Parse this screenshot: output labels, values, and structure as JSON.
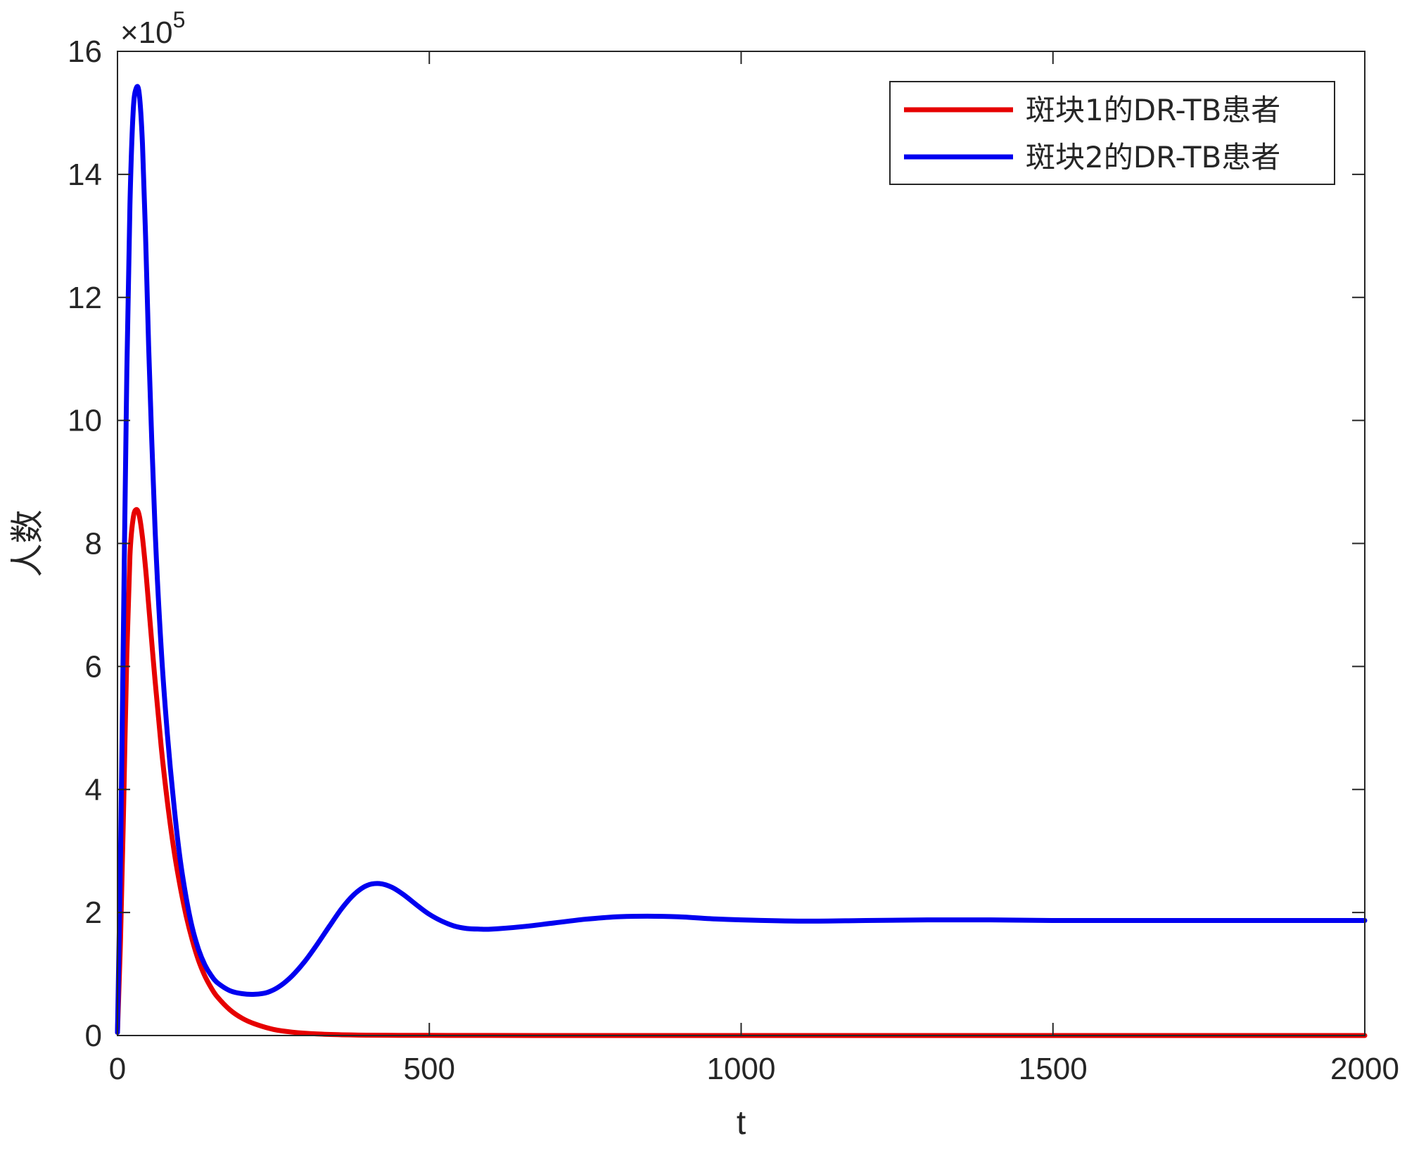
{
  "chart_data": {
    "type": "line",
    "xlabel": "t",
    "ylabel": "人数",
    "y_exponent_label": "×10",
    "y_exponent_power": "5",
    "xlim": [
      0,
      2000
    ],
    "ylim": [
      0,
      16
    ],
    "y_scale_factor": 100000,
    "grid": false,
    "legend_position": "top-right",
    "x_ticks": [
      0,
      500,
      1000,
      1500,
      2000
    ],
    "x_tick_labels": [
      "0",
      "500",
      "1000",
      "1500",
      "2000"
    ],
    "y_ticks": [
      0,
      2,
      4,
      6,
      8,
      10,
      12,
      14,
      16
    ],
    "y_tick_labels": [
      "0",
      "2",
      "4",
      "6",
      "8",
      "10",
      "12",
      "14",
      "16"
    ],
    "series": [
      {
        "name": "斑块1的DR-TB患者",
        "color": "#e60000",
        "x": [
          0,
          5,
          10,
          15,
          20,
          25,
          30,
          35,
          40,
          45,
          50,
          60,
          70,
          80,
          90,
          100,
          110,
          120,
          130,
          140,
          150,
          160,
          180,
          200,
          220,
          250,
          280,
          320,
          360,
          400,
          450,
          500,
          600,
          800,
          1000,
          1500,
          2000
        ],
        "y": [
          0.05,
          1.6,
          3.8,
          6.2,
          7.8,
          8.4,
          8.55,
          8.45,
          8.1,
          7.6,
          7.0,
          5.8,
          4.7,
          3.8,
          3.05,
          2.45,
          1.95,
          1.55,
          1.22,
          0.97,
          0.78,
          0.63,
          0.42,
          0.28,
          0.19,
          0.1,
          0.055,
          0.025,
          0.012,
          0.006,
          0.003,
          0.002,
          0.001,
          0.0,
          0.0,
          0.0,
          0.0
        ]
      },
      {
        "name": "斑块2的DR-TB患者",
        "color": "#0000f0",
        "x": [
          0,
          5,
          10,
          15,
          20,
          25,
          30,
          35,
          40,
          45,
          50,
          60,
          70,
          80,
          90,
          100,
          110,
          120,
          130,
          140,
          150,
          160,
          180,
          200,
          220,
          240,
          260,
          280,
          300,
          320,
          340,
          360,
          380,
          400,
          420,
          440,
          460,
          480,
          500,
          520,
          540,
          560,
          580,
          600,
          650,
          700,
          750,
          800,
          850,
          900,
          950,
          1000,
          1100,
          1200,
          1300,
          1400,
          1500,
          1600,
          1700,
          1800,
          1900,
          2000
        ],
        "y": [
          0.05,
          3.0,
          7.0,
          10.8,
          13.5,
          15.0,
          15.4,
          15.3,
          14.5,
          13.0,
          11.2,
          8.3,
          6.3,
          4.9,
          3.8,
          2.9,
          2.25,
          1.75,
          1.4,
          1.15,
          0.98,
          0.86,
          0.73,
          0.68,
          0.67,
          0.7,
          0.8,
          0.97,
          1.2,
          1.48,
          1.78,
          2.07,
          2.3,
          2.44,
          2.47,
          2.41,
          2.28,
          2.12,
          1.97,
          1.86,
          1.78,
          1.74,
          1.73,
          1.73,
          1.77,
          1.83,
          1.89,
          1.93,
          1.94,
          1.93,
          1.9,
          1.88,
          1.86,
          1.87,
          1.88,
          1.88,
          1.87,
          1.87,
          1.87,
          1.87,
          1.87,
          1.87
        ]
      }
    ]
  }
}
